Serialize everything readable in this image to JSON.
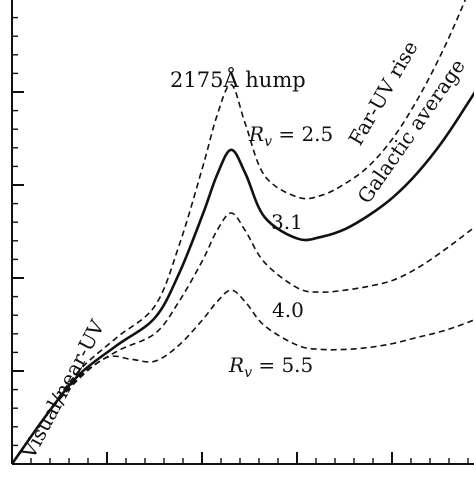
{
  "chart_data": {
    "type": "line",
    "xlim": [
      0,
      11
    ],
    "ylim": [
      -5,
      20
    ],
    "series": [
      {
        "name": "R_v = 2.5",
        "style": "dashed",
        "x": [
          0,
          0.7,
          1.4,
          2.2,
          3.0,
          3.5,
          4.0,
          4.3,
          4.6,
          4.9,
          5.3,
          6.0,
          6.5,
          7.0,
          7.5,
          8.0,
          8.5,
          9.0,
          9.5,
          10.0
        ],
        "y": [
          -5,
          -2.6,
          -0.3,
          1.4,
          3.0,
          6.0,
          10.0,
          12.6,
          14.2,
          12.2,
          9.6,
          8.5,
          8.6,
          9.2,
          10.1,
          11.5,
          13.4,
          15.7,
          18.4,
          21.5
        ]
      },
      {
        "name": "R_v = 3.1",
        "style": "solid",
        "x": [
          0,
          0.7,
          1.4,
          2.2,
          3.0,
          3.5,
          4.0,
          4.3,
          4.6,
          4.9,
          5.3,
          6.0,
          6.5,
          7.0,
          7.5,
          8.0,
          8.5,
          9.0,
          9.5,
          10.0,
          11.0
        ],
        "y": [
          -5,
          -2.6,
          -0.5,
          1.0,
          2.4,
          4.6,
          7.6,
          9.6,
          10.9,
          9.7,
          7.5,
          6.4,
          6.5,
          6.9,
          7.6,
          8.5,
          9.7,
          11.2,
          13.0,
          15.0,
          19.7
        ]
      },
      {
        "name": "R_v = 4.0",
        "style": "dashed",
        "x": [
          0,
          0.7,
          1.4,
          2.2,
          3.0,
          3.5,
          4.0,
          4.3,
          4.6,
          4.9,
          5.3,
          6.0,
          6.5,
          7.0,
          7.5,
          8.0,
          8.5,
          9.0,
          9.5,
          10.0,
          11.0
        ],
        "y": [
          -5,
          -2.6,
          -0.6,
          0.7,
          1.6,
          3.2,
          5.3,
          6.8,
          7.7,
          6.8,
          5.2,
          3.9,
          3.7,
          3.8,
          4.0,
          4.3,
          4.9,
          5.7,
          6.6,
          7.6,
          10.2
        ]
      },
      {
        "name": "R_v = 5.5",
        "style": "dashed",
        "x": [
          0,
          0.7,
          1.4,
          2.0,
          2.5,
          3.0,
          3.5,
          4.0,
          4.3,
          4.6,
          4.9,
          5.3,
          6.0,
          6.5,
          7.0,
          7.5,
          8.0,
          8.5,
          9.0,
          9.5,
          10.0,
          11.0
        ],
        "y": [
          -5,
          -2.6,
          -0.7,
          0.4,
          0.3,
          0.2,
          1.0,
          2.3,
          3.2,
          3.8,
          3.2,
          2.0,
          1.0,
          0.8,
          0.8,
          0.9,
          1.1,
          1.4,
          1.7,
          2.1,
          2.6,
          3.6
        ]
      }
    ],
    "annotations": [
      {
        "text": "2175Å hump"
      },
      {
        "text": "R",
        "sub": "v",
        "suffix": " = 2.5"
      },
      {
        "text": "3.1"
      },
      {
        "text": "4.0"
      },
      {
        "text": "R",
        "sub": "v",
        "suffix": " = 5.5"
      },
      {
        "text": "Far-UV rise"
      },
      {
        "text": "Galactic average"
      },
      {
        "text": "Visual/near-UV"
      }
    ]
  }
}
